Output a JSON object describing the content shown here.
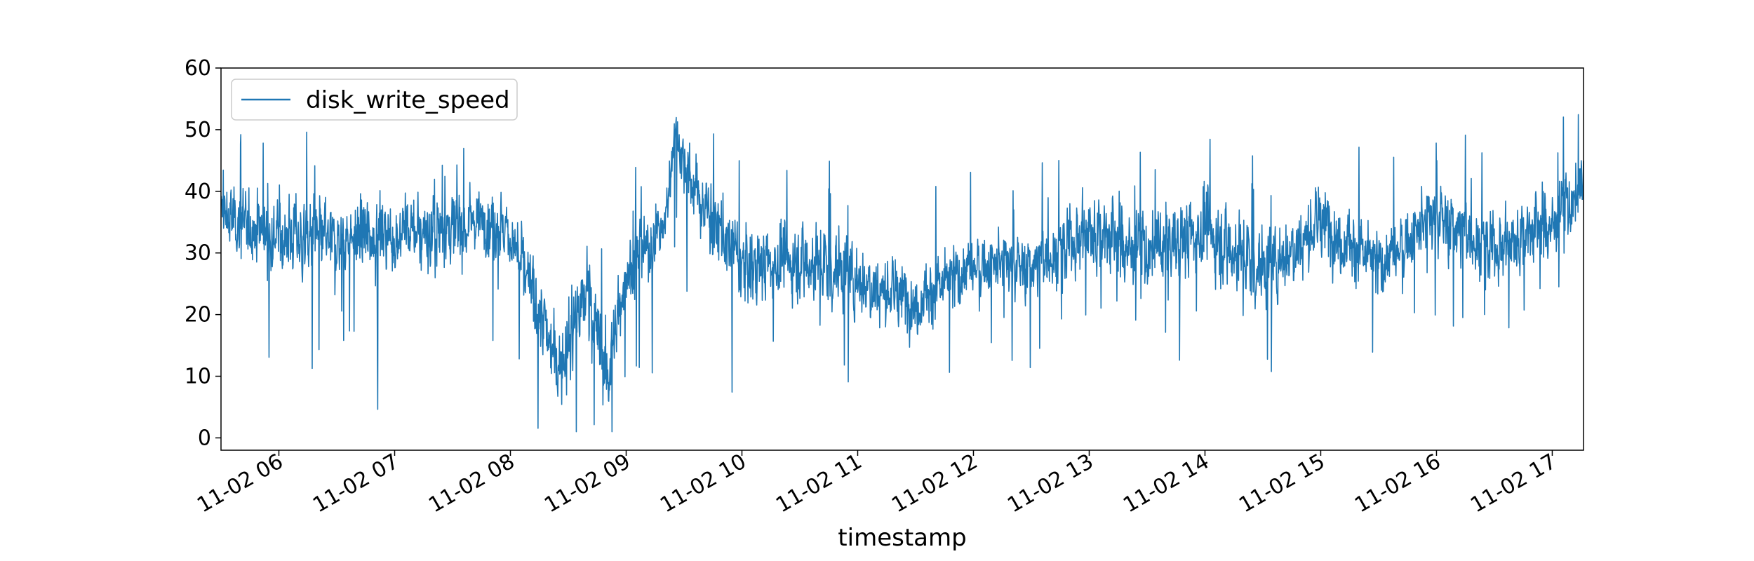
{
  "chart_data": {
    "type": "line",
    "title": "",
    "xlabel": "timestamp",
    "ylabel": "",
    "x_tick_labels": [
      "11-02 06",
      "11-02 07",
      "11-02 08",
      "11-02 09",
      "11-02 10",
      "11-02 11",
      "11-02 12",
      "11-02 13",
      "11-02 14",
      "11-02 15",
      "11-02 16",
      "11-02 17"
    ],
    "x_ticks_hours": [
      6,
      7,
      8,
      9,
      10,
      11,
      12,
      13,
      14,
      15,
      16,
      17
    ],
    "xlim_hours": [
      5.5,
      17.27
    ],
    "ylim": [
      -2,
      60
    ],
    "y_ticks": [
      0,
      10,
      20,
      30,
      40,
      50,
      60
    ],
    "grid": false,
    "legend": {
      "position": "top-left",
      "entries": [
        "disk_write_speed"
      ]
    },
    "colors": {
      "series": "#1f77b4"
    },
    "series": [
      {
        "name": "disk_write_speed",
        "x_start": "11-02 05:30",
        "x_end": "11-02 17:16",
        "hourly_profile": [
          {
            "t": "05:30",
            "mean": 36,
            "spread": 7
          },
          {
            "t": "06:00",
            "mean": 33,
            "spread": 8
          },
          {
            "t": "06:30",
            "mean": 32,
            "spread": 8
          },
          {
            "t": "07:00",
            "mean": 33,
            "spread": 8
          },
          {
            "t": "07:30",
            "mean": 34,
            "spread": 8
          },
          {
            "t": "07:45",
            "mean": 36,
            "spread": 7
          },
          {
            "t": "08:00",
            "mean": 33,
            "spread": 7
          },
          {
            "t": "08:15",
            "mean": 20,
            "spread": 9
          },
          {
            "t": "08:25",
            "mean": 12,
            "spread": 9
          },
          {
            "t": "08:40",
            "mean": 24,
            "spread": 10
          },
          {
            "t": "08:50",
            "mean": 10,
            "spread": 9
          },
          {
            "t": "09:00",
            "mean": 27,
            "spread": 7
          },
          {
            "t": "09:20",
            "mean": 34,
            "spread": 7
          },
          {
            "t": "09:25",
            "mean": 50,
            "spread": 5
          },
          {
            "t": "09:35",
            "mean": 40,
            "spread": 8
          },
          {
            "t": "10:00",
            "mean": 28,
            "spread": 8
          },
          {
            "t": "10:30",
            "mean": 29,
            "spread": 8
          },
          {
            "t": "11:00",
            "mean": 26,
            "spread": 8
          },
          {
            "t": "11:30",
            "mean": 22,
            "spread": 7
          },
          {
            "t": "12:00",
            "mean": 28,
            "spread": 7
          },
          {
            "t": "12:30",
            "mean": 28,
            "spread": 7
          },
          {
            "t": "13:00",
            "mean": 34,
            "spread": 9
          },
          {
            "t": "13:30",
            "mean": 30,
            "spread": 9
          },
          {
            "t": "14:00",
            "mean": 34,
            "spread": 9
          },
          {
            "t": "14:30",
            "mean": 27,
            "spread": 8
          },
          {
            "t": "15:00",
            "mean": 35,
            "spread": 8
          },
          {
            "t": "15:30",
            "mean": 28,
            "spread": 7
          },
          {
            "t": "16:00",
            "mean": 36,
            "spread": 8
          },
          {
            "t": "16:30",
            "mean": 31,
            "spread": 8
          },
          {
            "t": "17:00",
            "mean": 35,
            "spread": 8
          },
          {
            "t": "17:16",
            "mean": 40,
            "spread": 8
          }
        ],
        "min": 1,
        "max": 57
      }
    ]
  }
}
